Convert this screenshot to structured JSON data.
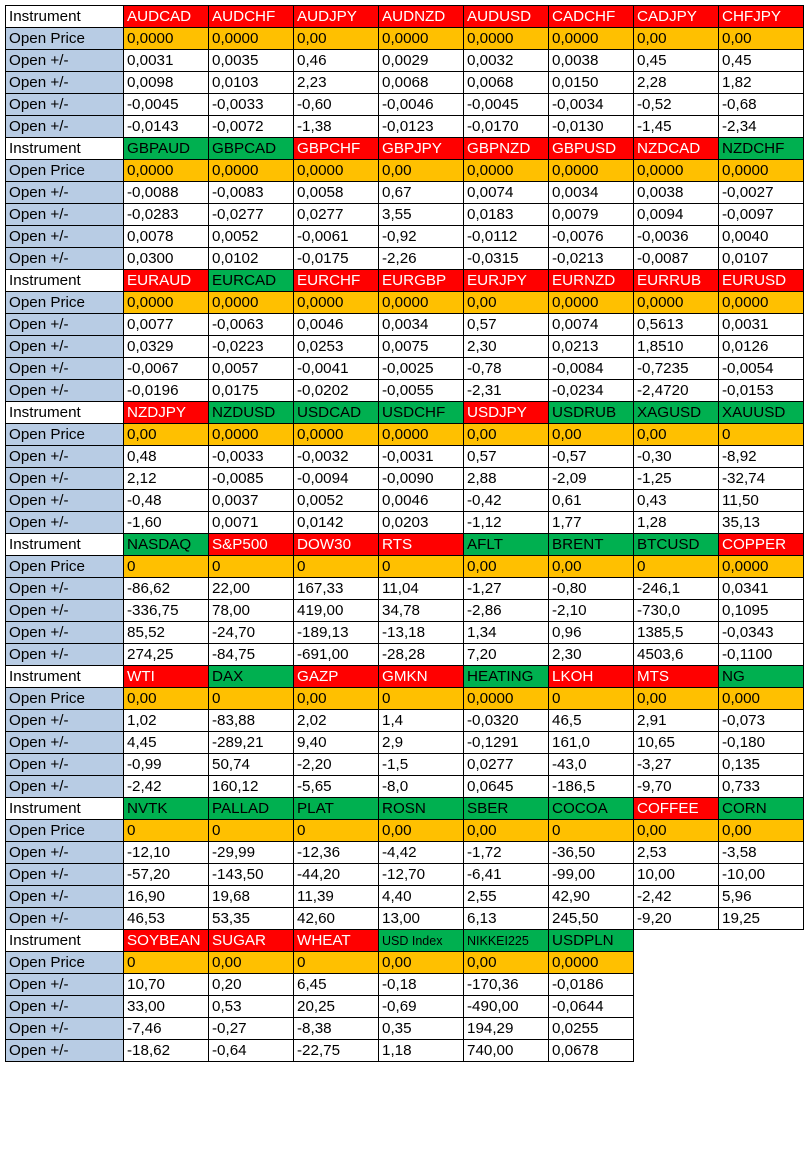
{
  "colors": {
    "red": "#ff0000",
    "green": "#00b050",
    "open_price_fill": "#ffc000",
    "label_fill": "#b8cce4"
  },
  "labels": {
    "instrument": "Instrument",
    "open_price": "Open Price",
    "open_pm": "Open +/-"
  },
  "blocks": [
    {
      "instruments": [
        {
          "name": "AUDCAD",
          "color": "red"
        },
        {
          "name": "AUDCHF",
          "color": "red"
        },
        {
          "name": "AUDJPY",
          "color": "red"
        },
        {
          "name": "AUDNZD",
          "color": "red"
        },
        {
          "name": "AUDUSD",
          "color": "red"
        },
        {
          "name": "CADCHF",
          "color": "red"
        },
        {
          "name": "CADJPY",
          "color": "red"
        },
        {
          "name": "CHFJPY",
          "color": "red"
        }
      ],
      "open_price": [
        "0,0000",
        "0,0000",
        "0,00",
        "0,0000",
        "0,0000",
        "0,0000",
        "0,00",
        "0,00"
      ],
      "rows": [
        [
          "0,0031",
          "0,0035",
          "0,46",
          "0,0029",
          "0,0032",
          "0,0038",
          "0,45",
          "0,45"
        ],
        [
          "0,0098",
          "0,0103",
          "2,23",
          "0,0068",
          "0,0068",
          "0,0150",
          "2,28",
          "1,82"
        ],
        [
          "-0,0045",
          "-0,0033",
          "-0,60",
          "-0,0046",
          "-0,0045",
          "-0,0034",
          "-0,52",
          "-0,68"
        ],
        [
          "-0,0143",
          "-0,0072",
          "-1,38",
          "-0,0123",
          "-0,0170",
          "-0,0130",
          "-1,45",
          "-2,34"
        ]
      ]
    },
    {
      "instruments": [
        {
          "name": "GBPAUD",
          "color": "green"
        },
        {
          "name": "GBPCAD",
          "color": "green"
        },
        {
          "name": "GBPCHF",
          "color": "red"
        },
        {
          "name": "GBPJPY",
          "color": "red"
        },
        {
          "name": "GBPNZD",
          "color": "red"
        },
        {
          "name": "GBPUSD",
          "color": "red"
        },
        {
          "name": "NZDCAD",
          "color": "red"
        },
        {
          "name": "NZDCHF",
          "color": "green"
        }
      ],
      "open_price": [
        "0,0000",
        "0,0000",
        "0,0000",
        "0,00",
        "0,0000",
        "0,0000",
        "0,0000",
        "0,0000"
      ],
      "rows": [
        [
          "-0,0088",
          "-0,0083",
          "0,0058",
          "0,67",
          "0,0074",
          "0,0034",
          "0,0038",
          "-0,0027"
        ],
        [
          "-0,0283",
          "-0,0277",
          "0,0277",
          "3,55",
          "0,0183",
          "0,0079",
          "0,0094",
          "-0,0097"
        ],
        [
          "0,0078",
          "0,0052",
          "-0,0061",
          "-0,92",
          "-0,0112",
          "-0,0076",
          "-0,0036",
          "0,0040"
        ],
        [
          "0,0300",
          "0,0102",
          "-0,0175",
          "-2,26",
          "-0,0315",
          "-0,0213",
          "-0,0087",
          "0,0107"
        ]
      ]
    },
    {
      "instruments": [
        {
          "name": "EURAUD",
          "color": "red"
        },
        {
          "name": "EURCAD",
          "color": "green"
        },
        {
          "name": "EURCHF",
          "color": "red"
        },
        {
          "name": "EURGBP",
          "color": "red"
        },
        {
          "name": "EURJPY",
          "color": "red"
        },
        {
          "name": "EURNZD",
          "color": "red"
        },
        {
          "name": "EURRUB",
          "color": "red"
        },
        {
          "name": "EURUSD",
          "color": "red"
        }
      ],
      "open_price": [
        "0,0000",
        "0,0000",
        "0,0000",
        "0,0000",
        "0,00",
        "0,0000",
        "0,0000",
        "0,0000"
      ],
      "rows": [
        [
          "0,0077",
          "-0,0063",
          "0,0046",
          "0,0034",
          "0,57",
          "0,0074",
          "0,5613",
          "0,0031"
        ],
        [
          "0,0329",
          "-0,0223",
          "0,0253",
          "0,0075",
          "2,30",
          "0,0213",
          "1,8510",
          "0,0126"
        ],
        [
          "-0,0067",
          "0,0057",
          "-0,0041",
          "-0,0025",
          "-0,78",
          "-0,0084",
          "-0,7235",
          "-0,0054"
        ],
        [
          "-0,0196",
          "0,0175",
          "-0,0202",
          "-0,0055",
          "-2,31",
          "-0,0234",
          "-2,4720",
          "-0,0153"
        ]
      ]
    },
    {
      "instruments": [
        {
          "name": "NZDJPY",
          "color": "red"
        },
        {
          "name": "NZDUSD",
          "color": "green"
        },
        {
          "name": "USDCAD",
          "color": "green"
        },
        {
          "name": "USDCHF",
          "color": "green"
        },
        {
          "name": "USDJPY",
          "color": "red"
        },
        {
          "name": "USDRUB",
          "color": "green"
        },
        {
          "name": "XAGUSD",
          "color": "green"
        },
        {
          "name": "XAUUSD",
          "color": "green"
        }
      ],
      "open_price": [
        "0,00",
        "0,0000",
        "0,0000",
        "0,0000",
        "0,00",
        "0,00",
        "0,00",
        "0"
      ],
      "rows": [
        [
          "0,48",
          "-0,0033",
          "-0,0032",
          "-0,0031",
          "0,57",
          "-0,57",
          "-0,30",
          "-8,92"
        ],
        [
          "2,12",
          "-0,0085",
          "-0,0094",
          "-0,0090",
          "2,88",
          "-2,09",
          "-1,25",
          "-32,74"
        ],
        [
          "-0,48",
          "0,0037",
          "0,0052",
          "0,0046",
          "-0,42",
          "0,61",
          "0,43",
          "11,50"
        ],
        [
          "-1,60",
          "0,0071",
          "0,0142",
          "0,0203",
          "-1,12",
          "1,77",
          "1,28",
          "35,13"
        ]
      ]
    },
    {
      "instruments": [
        {
          "name": "NASDAQ",
          "color": "green"
        },
        {
          "name": "S&P500",
          "color": "red"
        },
        {
          "name": "DOW30",
          "color": "red"
        },
        {
          "name": "RTS",
          "color": "red"
        },
        {
          "name": "AFLT",
          "color": "green"
        },
        {
          "name": "BRENT",
          "color": "green"
        },
        {
          "name": "BTCUSD",
          "color": "green"
        },
        {
          "name": "COPPER",
          "color": "red"
        }
      ],
      "open_price": [
        "0",
        "0",
        "0",
        "0",
        "0,00",
        "0,00",
        "0",
        "0,0000"
      ],
      "rows": [
        [
          "-86,62",
          "22,00",
          "167,33",
          "11,04",
          "-1,27",
          "-0,80",
          "-246,1",
          "0,0341"
        ],
        [
          "-336,75",
          "78,00",
          "419,00",
          "34,78",
          "-2,86",
          "-2,10",
          "-730,0",
          "0,1095"
        ],
        [
          "85,52",
          "-24,70",
          "-189,13",
          "-13,18",
          "1,34",
          "0,96",
          "1385,5",
          "-0,0343"
        ],
        [
          "274,25",
          "-84,75",
          "-691,00",
          "-28,28",
          "7,20",
          "2,30",
          "4503,6",
          "-0,1100"
        ]
      ]
    },
    {
      "instruments": [
        {
          "name": "WTI",
          "color": "red"
        },
        {
          "name": "DAX",
          "color": "green"
        },
        {
          "name": "GAZP",
          "color": "red"
        },
        {
          "name": "GMKN",
          "color": "red"
        },
        {
          "name": "HEATING",
          "color": "green"
        },
        {
          "name": "LKOH",
          "color": "red"
        },
        {
          "name": "MTS",
          "color": "red"
        },
        {
          "name": "NG",
          "color": "green"
        }
      ],
      "open_price": [
        "0,00",
        "0",
        "0,00",
        "0",
        "0,0000",
        "0",
        "0,00",
        "0,000"
      ],
      "rows": [
        [
          "1,02",
          "-83,88",
          "2,02",
          "1,4",
          "-0,0320",
          "46,5",
          "2,91",
          "-0,073"
        ],
        [
          "4,45",
          "-289,21",
          "9,40",
          "2,9",
          "-0,1291",
          "161,0",
          "10,65",
          "-0,180"
        ],
        [
          "-0,99",
          "50,74",
          "-2,20",
          "-1,5",
          "0,0277",
          "-43,0",
          "-3,27",
          "0,135"
        ],
        [
          "-2,42",
          "160,12",
          "-5,65",
          "-8,0",
          "0,0645",
          "-186,5",
          "-9,70",
          "0,733"
        ]
      ]
    },
    {
      "instruments": [
        {
          "name": "NVTK",
          "color": "green"
        },
        {
          "name": "PALLAD",
          "color": "green"
        },
        {
          "name": "PLAT",
          "color": "green"
        },
        {
          "name": "ROSN",
          "color": "green"
        },
        {
          "name": "SBER",
          "color": "green"
        },
        {
          "name": "COCOA",
          "color": "green"
        },
        {
          "name": "COFFEE",
          "color": "red"
        },
        {
          "name": "CORN",
          "color": "green"
        }
      ],
      "open_price": [
        "0",
        "0",
        "0",
        "0,00",
        "0,00",
        "0",
        "0,00",
        "0,00"
      ],
      "rows": [
        [
          "-12,10",
          "-29,99",
          "-12,36",
          "-4,42",
          "-1,72",
          "-36,50",
          "2,53",
          "-3,58"
        ],
        [
          "-57,20",
          "-143,50",
          "-44,20",
          "-12,70",
          "-6,41",
          "-99,00",
          "10,00",
          "-10,00"
        ],
        [
          "16,90",
          "19,68",
          "11,39",
          "4,40",
          "2,55",
          "42,90",
          "-2,42",
          "5,96"
        ],
        [
          "46,53",
          "53,35",
          "42,60",
          "13,00",
          "6,13",
          "245,50",
          "-9,20",
          "19,25"
        ]
      ]
    },
    {
      "instruments": [
        {
          "name": "SOYBEAN",
          "color": "red"
        },
        {
          "name": "SUGAR",
          "color": "red"
        },
        {
          "name": "WHEAT",
          "color": "red"
        },
        {
          "name": "USD Index",
          "color": "green"
        },
        {
          "name": "NIKKEI225",
          "color": "green"
        },
        {
          "name": "USDPLN",
          "color": "green"
        }
      ],
      "open_price": [
        "0",
        "0,00",
        "0",
        "0,00",
        "0,00",
        "0,0000"
      ],
      "rows": [
        [
          "10,70",
          "0,20",
          "6,45",
          "-0,18",
          "-170,36",
          "-0,0186"
        ],
        [
          "33,00",
          "0,53",
          "20,25",
          "-0,69",
          "-490,00",
          "-0,0644"
        ],
        [
          "-7,46",
          "-0,27",
          "-8,38",
          "0,35",
          "194,29",
          "0,0255"
        ],
        [
          "-18,62",
          "-0,64",
          "-22,75",
          "1,18",
          "740,00",
          "0,0678"
        ]
      ]
    }
  ]
}
